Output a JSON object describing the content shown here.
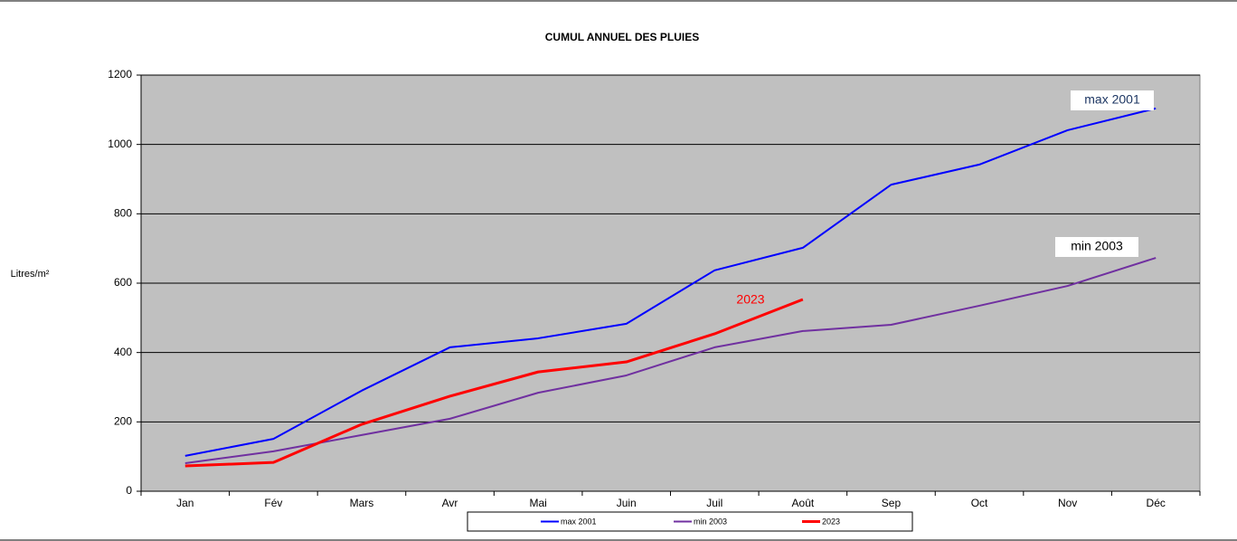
{
  "chart_data": {
    "type": "line",
    "title": "CUMUL ANNUEL DES PLUIES",
    "y_label": "Litres/m²",
    "categories": [
      "Jan",
      "Fév",
      "Mars",
      "Avr",
      "Mai",
      "Juin",
      "Juil",
      "Août",
      "Sep",
      "Oct",
      "Nov",
      "Déc"
    ],
    "series": [
      {
        "name": "max 2001",
        "color": "#0000ff",
        "values": [
          102,
          151,
          290,
          415,
          441,
          483,
          637,
          702,
          884,
          942,
          1041,
          1104
        ]
      },
      {
        "name": "min 2003",
        "color": "#7030a0",
        "values": [
          81,
          115,
          162,
          209,
          284,
          334,
          415,
          462,
          480,
          535,
          592,
          673
        ]
      },
      {
        "name": "2023",
        "color": "#ff0000",
        "values": [
          73,
          83,
          193,
          274,
          344,
          373,
          454,
          553,
          null,
          null,
          null,
          null
        ]
      }
    ],
    "annotations": [
      "max 2001",
      "min 2003",
      "2023"
    ],
    "ylim": [
      0,
      1200
    ],
    "yticks": [
      0,
      200,
      400,
      600,
      800,
      1000,
      1200
    ],
    "grid": true,
    "legend": "bottom",
    "plot_background": "#c0c0c0"
  }
}
